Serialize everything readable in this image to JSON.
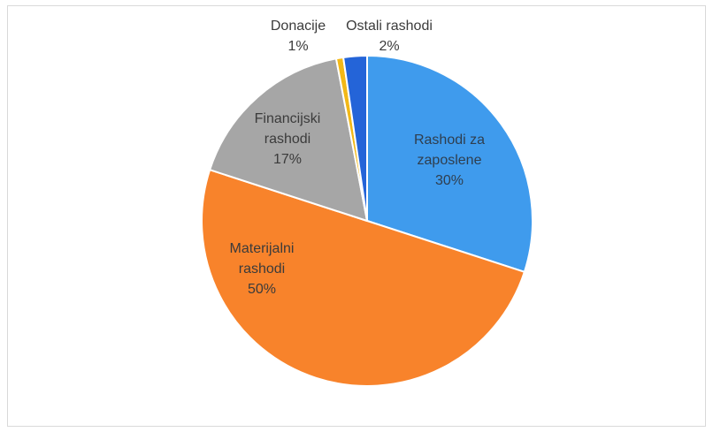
{
  "chart_data": {
    "type": "pie",
    "title": "",
    "slices": [
      {
        "name": "Rashodi za zaposlene",
        "lines": [
          "Rashodi za",
          "zaposlene",
          "30%"
        ],
        "value": 30,
        "color": "#3f9bed",
        "label_color": "#2f3e4e"
      },
      {
        "name": "Materijalni rashodi",
        "lines": [
          "Materijalni",
          "rashodi",
          "50%"
        ],
        "value": 50,
        "color": "#f8832b",
        "label_color": "#3b3b3b"
      },
      {
        "name": "Financijski rashodi",
        "lines": [
          "Financijski",
          "rashodi",
          "17%"
        ],
        "value": 17,
        "color": "#a6a6a6",
        "label_color": "#3b3b3b"
      },
      {
        "name": "Donacije",
        "lines": [
          "Donacije",
          "1%"
        ],
        "value": 0.7,
        "color": "#f2b817",
        "label_color": "#3b3b3b"
      },
      {
        "name": "Ostali rashodi",
        "lines": [
          "Ostali rashodi",
          "2%"
        ],
        "value": 2.3,
        "color": "#2464d8",
        "label_color": "#3b3b3b"
      }
    ]
  }
}
